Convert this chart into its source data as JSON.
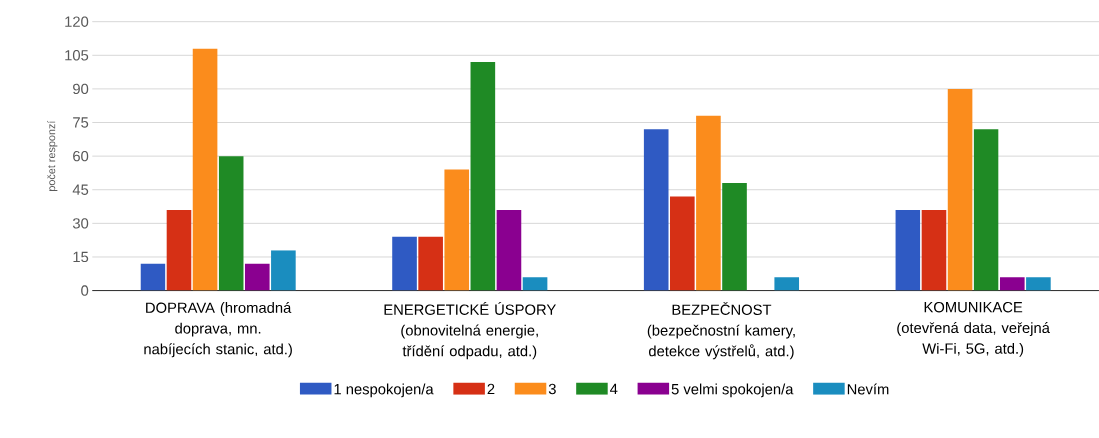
{
  "chart_data": {
    "type": "bar",
    "ylabel": "počet responzí",
    "categories": [
      "DOPRAVA (hromadná doprava, mn. nabíjecích stanic, atd.)",
      "ENERGETICKÉ ÚSPORY (obnovitelná energie, třídění odpadu, atd.)",
      "BEZPEČNOST (bezpečnostní kamery, detekce výstřelů, atd.)",
      "KOMUNIKACE (otevřená data, veřejná Wi-Fi, 5G, atd.)"
    ],
    "series": [
      {
        "name": "1 nespokojen/a",
        "color": "#2f5ac3",
        "values": [
          12,
          24,
          72,
          36
        ]
      },
      {
        "name": "2",
        "color": "#d63015",
        "values": [
          36,
          24,
          42,
          36
        ]
      },
      {
        "name": "3",
        "color": "#fb8c1c",
        "values": [
          108,
          54,
          78,
          90
        ]
      },
      {
        "name": "4",
        "color": "#1f8a25",
        "values": [
          60,
          102,
          48,
          72
        ]
      },
      {
        "name": "5 velmi spokojen/a",
        "color": "#8a0090",
        "values": [
          12,
          36,
          0,
          6
        ]
      },
      {
        "name": "Nevím",
        "color": "#1a8dbf",
        "values": [
          18,
          6,
          6,
          6
        ]
      }
    ],
    "ylim": [
      0,
      120
    ],
    "yticks": [
      0,
      15,
      30,
      45,
      60,
      75,
      90,
      105,
      120
    ],
    "grid": "y",
    "legend": "bottom"
  }
}
